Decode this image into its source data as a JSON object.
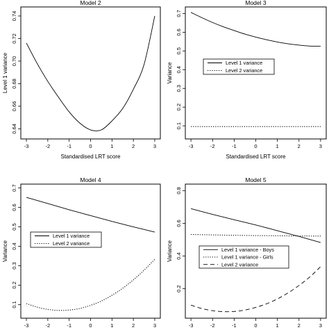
{
  "chart_data": [
    {
      "type": "line",
      "title": "Model 2",
      "xlabel": "Standardised LRT score",
      "ylabel": "Level 1 variance",
      "xlim": [
        -3,
        3
      ],
      "ylim": [
        0.631,
        0.748
      ],
      "xticks": [
        -3,
        -2,
        -1,
        0,
        1,
        2,
        3
      ],
      "yticks": [
        0.64,
        0.66,
        0.68,
        0.7,
        0.72,
        0.74
      ],
      "ytick_labels": [
        "0.64",
        "0.66",
        "0.68",
        "0.70",
        "0.72",
        "0.74"
      ],
      "legend": null,
      "series": [
        {
          "name": "",
          "dash": "solid",
          "x": [
            -3,
            -2.5,
            -2,
            -1.5,
            -1,
            -0.5,
            0,
            0.5,
            1,
            1.5,
            2,
            2.5,
            3
          ],
          "values": [
            0.716,
            0.698,
            0.682,
            0.668,
            0.655,
            0.645,
            0.639,
            0.639,
            0.647,
            0.658,
            0.675,
            0.697,
            0.74
          ]
        }
      ]
    },
    {
      "type": "line",
      "title": "Model 3",
      "xlabel": "Standardised LRT score",
      "ylabel": "Variance",
      "xlim": [
        -3,
        3
      ],
      "ylim": [
        0.03,
        0.735
      ],
      "xticks": [
        -3,
        -2,
        -1,
        0,
        1,
        2,
        3
      ],
      "yticks": [
        0.1,
        0.2,
        0.3,
        0.4,
        0.5,
        0.6,
        0.7
      ],
      "ytick_labels": [
        "0.1",
        "0.2",
        "0.3",
        "0.4",
        "0.5",
        "0.6",
        "0.7"
      ],
      "legend": {
        "position": "middle-left",
        "entries": [
          "Level 1 variance",
          "Level 2 variance"
        ]
      },
      "series": [
        {
          "name": "Level 1 variance",
          "dash": "solid",
          "x": [
            -3,
            -2.5,
            -2,
            -1.5,
            -1,
            -0.5,
            0,
            0.5,
            1,
            1.5,
            2,
            2.5,
            3
          ],
          "values": [
            0.706,
            0.678,
            0.652,
            0.629,
            0.609,
            0.59,
            0.574,
            0.56,
            0.548,
            0.538,
            0.531,
            0.526,
            0.525
          ]
        },
        {
          "name": "Level 2 variance",
          "dash": "dotted",
          "x": [
            -3,
            3
          ],
          "values": [
            0.096,
            0.096
          ]
        }
      ]
    },
    {
      "type": "line",
      "title": "Model 4",
      "xlabel": "Standardised LRT score",
      "ylabel": "Variance",
      "xlim": [
        -3,
        3
      ],
      "ylim": [
        0.03,
        0.72
      ],
      "xticks": [
        -3,
        -2,
        -1,
        0,
        1,
        2,
        3
      ],
      "yticks": [
        0.1,
        0.2,
        0.3,
        0.4,
        0.5,
        0.6,
        0.7
      ],
      "ytick_labels": [
        "0.1",
        "0.2",
        "0.3",
        "0.4",
        "0.5",
        "0.6",
        "0.7"
      ],
      "legend": {
        "position": "middle-left",
        "entries": [
          "Level 1 variance",
          "Level 2 variance"
        ]
      },
      "series": [
        {
          "name": "Level 1 variance",
          "dash": "solid",
          "x": [
            -3,
            -2,
            -1,
            0,
            1,
            2,
            3
          ],
          "values": [
            0.652,
            0.62,
            0.588,
            0.558,
            0.528,
            0.5,
            0.473
          ]
        },
        {
          "name": "Level 2 variance",
          "dash": "dotted",
          "x": [
            -3,
            -2.5,
            -2,
            -1.5,
            -1,
            -0.5,
            0,
            0.5,
            1,
            1.5,
            2,
            2.5,
            3
          ],
          "values": [
            0.105,
            0.087,
            0.075,
            0.07,
            0.072,
            0.08,
            0.096,
            0.118,
            0.148,
            0.184,
            0.227,
            0.277,
            0.333
          ]
        }
      ]
    },
    {
      "type": "line",
      "title": "Model 5",
      "xlabel": "Standardised LRT score",
      "ylabel": "Variance",
      "xlim": [
        -3,
        3
      ],
      "ylim": [
        0.02,
        0.84
      ],
      "xticks": [
        -3,
        -2,
        -1,
        0,
        1,
        2,
        3
      ],
      "yticks": [
        0.2,
        0.4,
        0.6,
        0.8
      ],
      "ytick_labels": [
        "0.2",
        "0.4",
        "0.6",
        "0.8"
      ],
      "legend": {
        "position": "bottom-left",
        "entries": [
          "Level 1 variance - Boys",
          "Level 1 variance - Girls",
          "Level 2 variance"
        ]
      },
      "series": [
        {
          "name": "Level 1 variance - Boys",
          "dash": "solid",
          "x": [
            -3,
            -2,
            -1,
            0,
            1,
            2,
            3
          ],
          "values": [
            0.69,
            0.655,
            0.622,
            0.59,
            0.555,
            0.52,
            0.483
          ]
        },
        {
          "name": "Level 1 variance - Girls",
          "dash": "dotted",
          "x": [
            -3,
            -1,
            1,
            3
          ],
          "values": [
            0.532,
            0.527,
            0.524,
            0.522
          ]
        },
        {
          "name": "Level 2 variance",
          "dash": "dashed",
          "x": [
            -3,
            -2.5,
            -2,
            -1.5,
            -1,
            -0.5,
            0,
            0.5,
            1,
            1.5,
            2,
            2.5,
            3
          ],
          "values": [
            0.1,
            0.079,
            0.066,
            0.06,
            0.061,
            0.07,
            0.086,
            0.108,
            0.138,
            0.175,
            0.22,
            0.272,
            0.335
          ]
        }
      ]
    }
  ]
}
